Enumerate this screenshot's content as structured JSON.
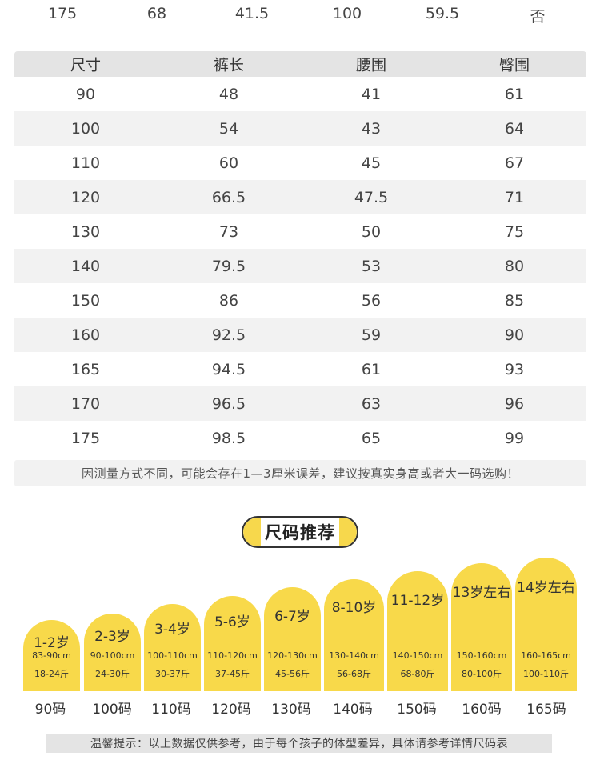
{
  "top_row": [
    "175",
    "68",
    "41.5",
    "100",
    "59.5",
    "否"
  ],
  "size_table": {
    "headers": [
      "尺寸",
      "裤长",
      "腰围",
      "臀围"
    ],
    "rows": [
      [
        "90",
        "48",
        "41",
        "61"
      ],
      [
        "100",
        "54",
        "43",
        "64"
      ],
      [
        "110",
        "60",
        "45",
        "67"
      ],
      [
        "120",
        "66.5",
        "47.5",
        "71"
      ],
      [
        "130",
        "73",
        "50",
        "75"
      ],
      [
        "140",
        "79.5",
        "53",
        "80"
      ],
      [
        "150",
        "86",
        "56",
        "85"
      ],
      [
        "160",
        "92.5",
        "59",
        "90"
      ],
      [
        "165",
        "94.5",
        "61",
        "93"
      ],
      [
        "170",
        "96.5",
        "63",
        "96"
      ],
      [
        "175",
        "98.5",
        "65",
        "99"
      ]
    ],
    "note": "因测量方式不同，可能会存在1—3厘米误差，建议按真实身高或者大一码选购！"
  },
  "recommend": {
    "title": "尺码推荐",
    "accent_color": "#f8d94a",
    "items": [
      {
        "age": "1-2岁",
        "height": "83-90cm",
        "weight": "18-24斤",
        "size": "90码"
      },
      {
        "age": "2-3岁",
        "height": "90-100cm",
        "weight": "24-30斤",
        "size": "100码"
      },
      {
        "age": "3-4岁",
        "height": "100-110cm",
        "weight": "30-37斤",
        "size": "110码"
      },
      {
        "age": "5-6岁",
        "height": "110-120cm",
        "weight": "37-45斤",
        "size": "120码"
      },
      {
        "age": "6-7岁",
        "height": "120-130cm",
        "weight": "45-56斤",
        "size": "130码"
      },
      {
        "age": "8-10岁",
        "height": "130-140cm",
        "weight": "56-68斤",
        "size": "140码"
      },
      {
        "age": "11-12岁",
        "height": "140-150cm",
        "weight": "68-80斤",
        "size": "150码"
      },
      {
        "age": "13岁左右",
        "height": "150-160cm",
        "weight": "80-100斤",
        "size": "160码"
      },
      {
        "age": "14岁左右",
        "height": "160-165cm",
        "weight": "100-110斤",
        "size": "165码"
      }
    ]
  },
  "tip": "温馨提示：以上数据仅供参考，由于每个孩子的体型差异，具体请参考详情尺码表"
}
